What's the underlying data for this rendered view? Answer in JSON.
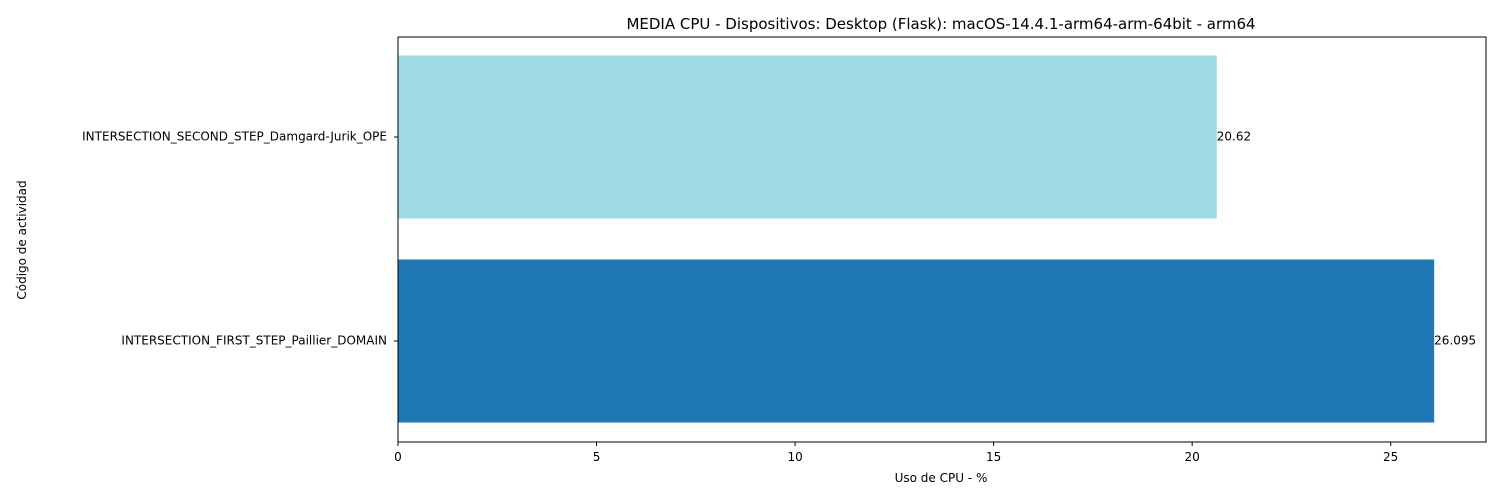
{
  "chart_data": {
    "type": "bar",
    "orientation": "horizontal",
    "title": "MEDIA CPU - Dispositivos: Desktop (Flask): macOS-14.4.1-arm64-arm-64bit - arm64",
    "xlabel": "Uso de CPU - %",
    "ylabel": "Código de actividad",
    "categories": [
      "INTERSECTION_SECOND_STEP_Damgard-Jurik_OPE",
      "INTERSECTION_FIRST_STEP_Paillier_DOMAIN"
    ],
    "values": [
      20.62,
      26.095
    ],
    "data_labels": [
      "20.62",
      "26.095"
    ],
    "colors": [
      "#9edae5",
      "#1f77b4"
    ],
    "xlim": [
      0,
      27.4
    ],
    "xticks": [
      0,
      5,
      10,
      15,
      20,
      25
    ],
    "xtick_labels": [
      "0",
      "5",
      "10",
      "15",
      "20",
      "25"
    ],
    "grid": false,
    "legend": "none"
  }
}
